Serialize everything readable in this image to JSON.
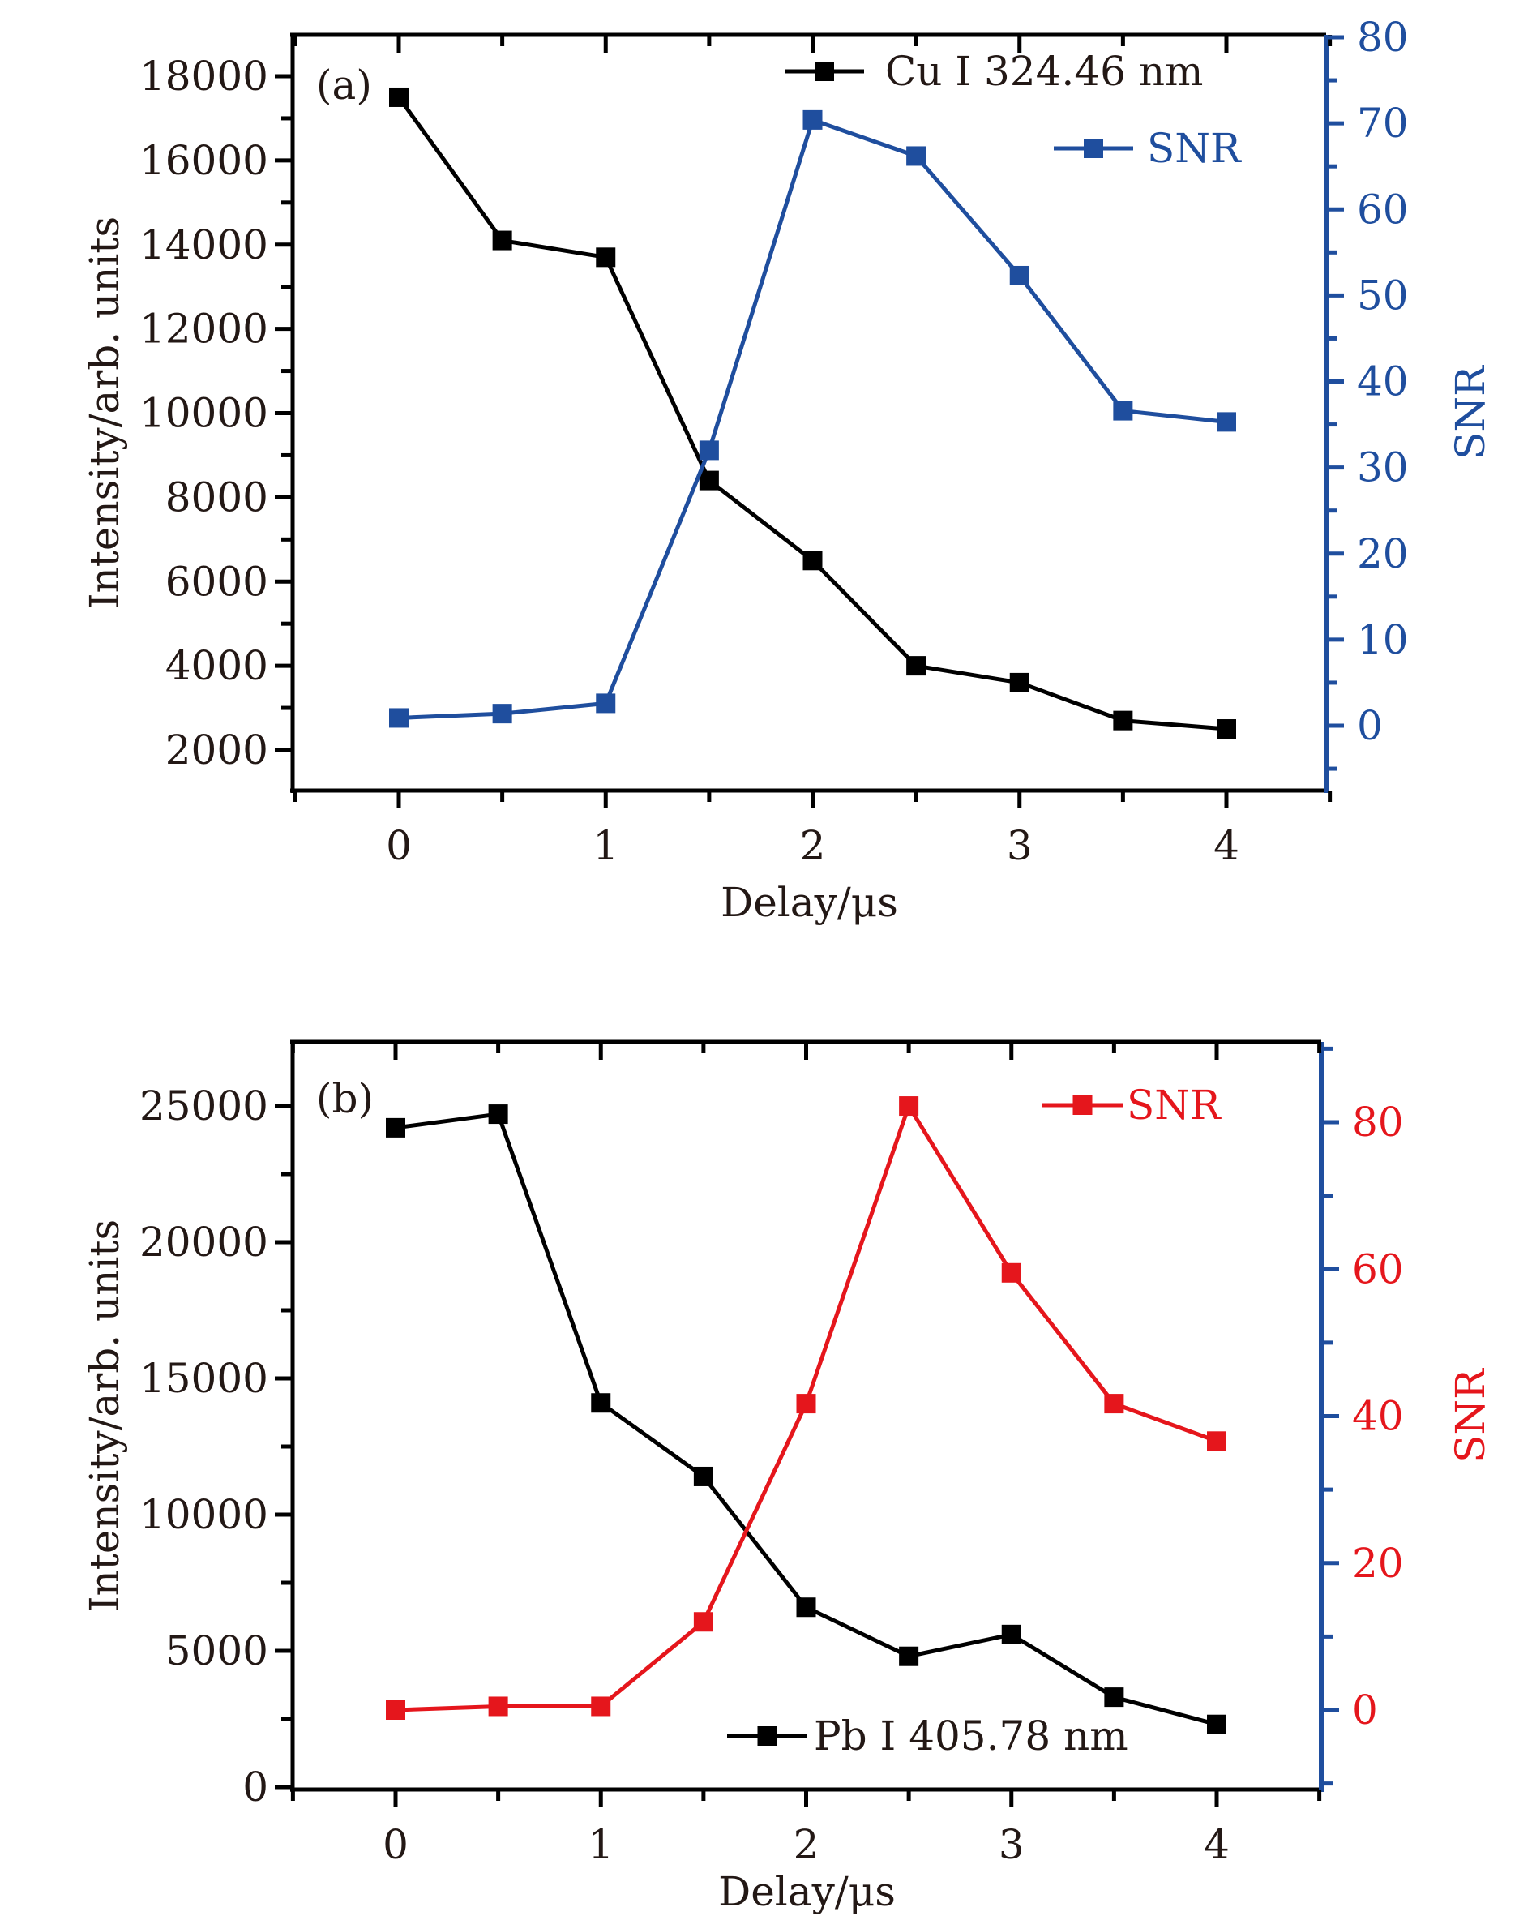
{
  "chart_data": [
    {
      "type": "line",
      "panel_label": "(a)",
      "xlabel": "Delay/μs",
      "ylabel": "Intensity/arb. units",
      "y2label": "SNR",
      "x": [
        0,
        0.5,
        1,
        1.5,
        2,
        2.5,
        3,
        3.5,
        4
      ],
      "xlim": [
        -0.5,
        4.5
      ],
      "xticks": [
        0,
        1,
        2,
        3,
        4
      ],
      "ylim": [
        1000,
        19000
      ],
      "yticks": [
        2000,
        4000,
        6000,
        8000,
        10000,
        12000,
        14000,
        16000,
        18000
      ],
      "y2lim": [
        -8,
        80
      ],
      "y2ticks": [
        0,
        10,
        20,
        30,
        40,
        50,
        60,
        70,
        80
      ],
      "grid": false,
      "legend_placement": "top-right",
      "colors": {
        "intensity": "#000000",
        "snr": "#1f4e9e",
        "y2_axis": "#1f4e9e",
        "y2_labels": "#1f4e9e"
      },
      "series": [
        {
          "name": "Cu I 324.46 nm",
          "axis": "left",
          "values": [
            17500,
            14100,
            13700,
            8400,
            6500,
            4000,
            3600,
            2700,
            2500
          ]
        },
        {
          "name": "SNR",
          "axis": "right",
          "values": [
            0.9,
            1.4,
            2.6,
            32.0,
            70.4,
            66.2,
            52.3,
            36.6,
            35.3
          ]
        }
      ]
    },
    {
      "type": "line",
      "panel_label": "(b)",
      "xlabel": "Delay/μs",
      "ylabel": "Intensity/arb. units",
      "y2label": "SNR",
      "x": [
        0,
        0.5,
        1,
        1.5,
        2,
        2.5,
        3,
        3.5,
        4
      ],
      "xlim": [
        -0.5,
        4.5
      ],
      "xticks": [
        0,
        1,
        2,
        3,
        4
      ],
      "ylim": [
        0,
        27500
      ],
      "yticks": [
        0,
        5000,
        10000,
        15000,
        20000,
        25000
      ],
      "y2lim": [
        -10,
        92
      ],
      "y2ticks": [
        0,
        20,
        40,
        60,
        80
      ],
      "grid": false,
      "legend_placement": "top-right / bottom-right",
      "colors": {
        "intensity": "#000000",
        "snr": "#e5161c",
        "y2_axis": "#1f4e9e",
        "y2_labels": "#e5161c"
      },
      "series": [
        {
          "name": "Pb I 405.78 nm",
          "axis": "left",
          "values": [
            24200,
            24700,
            14100,
            11400,
            6600,
            4800,
            5600,
            3300,
            2300
          ]
        },
        {
          "name": "SNR",
          "axis": "right",
          "values": [
            0,
            0.5,
            0.5,
            12,
            41.7,
            82.2,
            59.5,
            41.7,
            36.6
          ]
        }
      ]
    }
  ]
}
